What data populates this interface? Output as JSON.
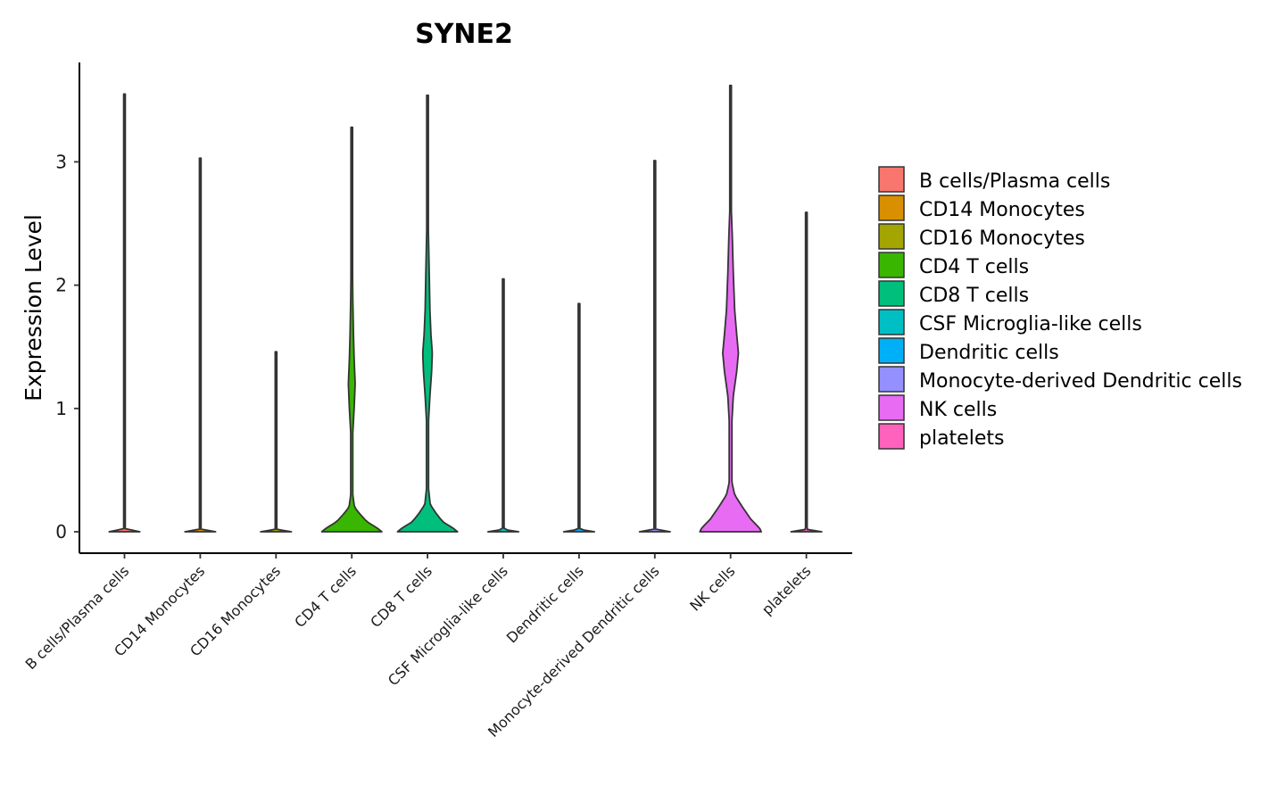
{
  "chart_data": {
    "type": "violin",
    "title": "SYNE2",
    "xlabel": "",
    "ylabel": "Expression Level",
    "ylim": [
      -0.18,
      3.8
    ],
    "yticks": [
      0,
      1,
      2,
      3
    ],
    "grid": false,
    "legend_position": "right",
    "categories": [
      "B cells/Plasma cells",
      "CD14 Monocytes",
      "CD16 Monocytes",
      "CD4 T cells",
      "CD8 T cells",
      "CSF Microglia-like cells",
      "Dendritic cells",
      "Monocyte-derived Dendritic cells",
      "NK cells",
      "platelets"
    ],
    "colors": [
      "#F8766D",
      "#D89000",
      "#A3A500",
      "#39B600",
      "#00BF7D",
      "#00BFC4",
      "#00B0F6",
      "#9590FF",
      "#E76BF3",
      "#FF62BC"
    ],
    "series": [
      {
        "name": "B cells/Plasma cells",
        "max": 3.55,
        "profile": [
          [
            0,
            0.45
          ],
          [
            0.02,
            0.0
          ]
        ]
      },
      {
        "name": "CD14 Monocytes",
        "max": 3.03,
        "profile": [
          [
            0,
            0.45
          ],
          [
            0.02,
            0.0
          ]
        ]
      },
      {
        "name": "CD16 Monocytes",
        "max": 1.46,
        "profile": [
          [
            0,
            0.45
          ],
          [
            0.02,
            0.0
          ]
        ]
      },
      {
        "name": "CD4 T cells",
        "max": 3.28,
        "profile": [
          [
            0,
            0.88
          ],
          [
            0.03,
            0.75
          ],
          [
            0.08,
            0.45
          ],
          [
            0.15,
            0.22
          ],
          [
            0.2,
            0.08
          ],
          [
            0.3,
            0.03
          ],
          [
            0.8,
            0.03
          ],
          [
            1.0,
            0.07
          ],
          [
            1.2,
            0.1
          ],
          [
            1.4,
            0.07
          ],
          [
            1.6,
            0.05
          ],
          [
            1.9,
            0.03
          ],
          [
            2.3,
            0.015
          ],
          [
            2.7,
            0.005
          ]
        ]
      },
      {
        "name": "CD8 T cells",
        "max": 3.54,
        "profile": [
          [
            0,
            0.88
          ],
          [
            0.03,
            0.75
          ],
          [
            0.08,
            0.45
          ],
          [
            0.15,
            0.25
          ],
          [
            0.22,
            0.08
          ],
          [
            0.35,
            0.03
          ],
          [
            0.9,
            0.03
          ],
          [
            1.1,
            0.07
          ],
          [
            1.3,
            0.12
          ],
          [
            1.45,
            0.14
          ],
          [
            1.6,
            0.1
          ],
          [
            1.8,
            0.07
          ],
          [
            2.1,
            0.05
          ],
          [
            2.5,
            0.02
          ],
          [
            2.9,
            0.005
          ]
        ]
      },
      {
        "name": "CSF Microglia-like cells",
        "max": 2.05,
        "profile": [
          [
            0,
            0.45
          ],
          [
            0.02,
            0.0
          ]
        ]
      },
      {
        "name": "Dendritic cells",
        "max": 1.85,
        "profile": [
          [
            0,
            0.45
          ],
          [
            0.02,
            0.0
          ]
        ]
      },
      {
        "name": "Monocyte-derived Dendritic cells",
        "max": 3.01,
        "profile": [
          [
            0,
            0.45
          ],
          [
            0.02,
            0.0
          ]
        ]
      },
      {
        "name": "NK cells",
        "max": 3.62,
        "profile": [
          [
            0,
            0.9
          ],
          [
            0.03,
            0.85
          ],
          [
            0.1,
            0.6
          ],
          [
            0.2,
            0.35
          ],
          [
            0.3,
            0.12
          ],
          [
            0.4,
            0.04
          ],
          [
            0.9,
            0.04
          ],
          [
            1.1,
            0.08
          ],
          [
            1.3,
            0.18
          ],
          [
            1.45,
            0.23
          ],
          [
            1.6,
            0.18
          ],
          [
            1.8,
            0.12
          ],
          [
            2.1,
            0.08
          ],
          [
            2.4,
            0.05
          ],
          [
            2.7,
            0.01
          ],
          [
            3.0,
            0.005
          ]
        ]
      },
      {
        "name": "platelets",
        "max": 2.59,
        "profile": [
          [
            0,
            0.45
          ],
          [
            0.02,
            0.0
          ]
        ]
      }
    ],
    "legend": [
      "B cells/Plasma cells",
      "CD14 Monocytes",
      "CD16 Monocytes",
      "CD4 T cells",
      "CD8 T cells",
      "CSF Microglia-like cells",
      "Dendritic cells",
      "Monocyte-derived Dendritic cells",
      "NK cells",
      "platelets"
    ]
  }
}
